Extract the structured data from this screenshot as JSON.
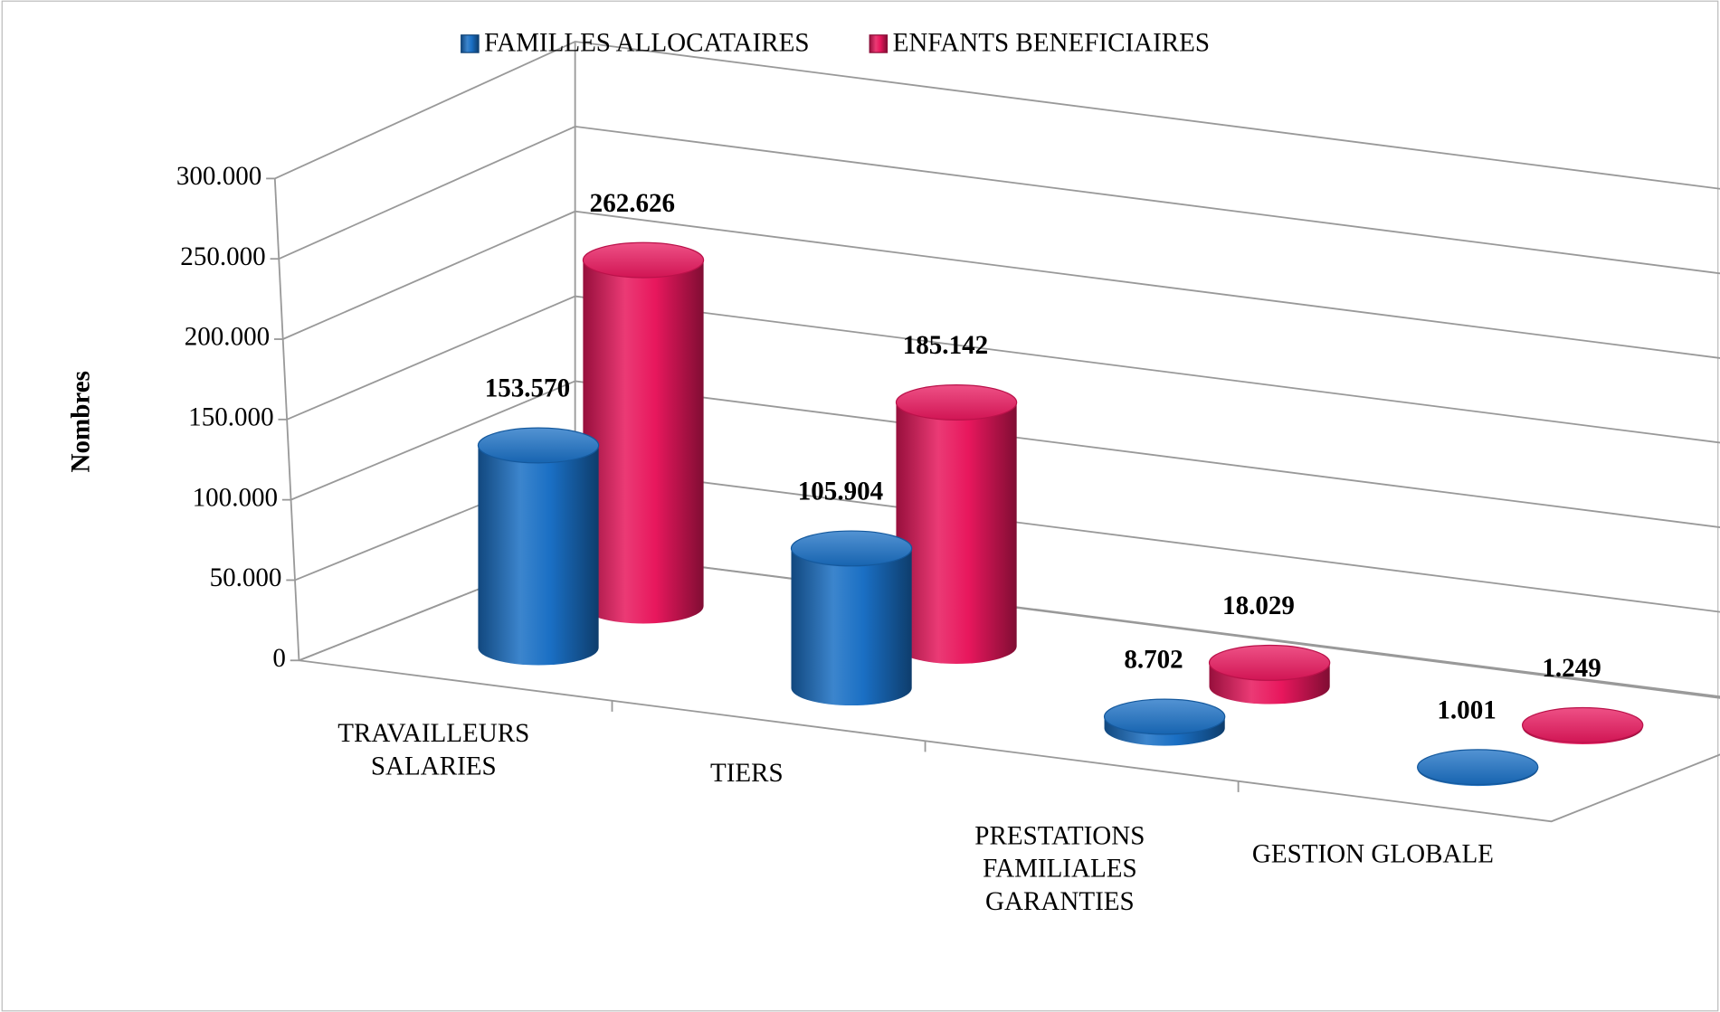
{
  "chart_data": {
    "type": "bar3d",
    "y_label": "Nombres",
    "categories": [
      "TRAVAILLEURS\nSALARIES",
      "TIERS",
      "PRESTATIONS\nFAMILIALES\nGARANTIES",
      "GESTION GLOBALE"
    ],
    "series": [
      {
        "name": "FAMILLES ALLOCATAIRES",
        "color": "#1a6fc4",
        "values": [
          153570,
          105904,
          8702,
          1001
        ],
        "value_labels": [
          "153.570",
          "105.904",
          "8.702",
          "1.001"
        ]
      },
      {
        "name": "ENFANTS BENEFICIAIRES",
        "color": "#e8175d",
        "values": [
          262626,
          185142,
          18029,
          1249
        ],
        "value_labels": [
          "262.626",
          "185.142",
          "18.029",
          "1.249"
        ]
      }
    ],
    "ylim": [
      0,
      300000
    ],
    "yticks": [
      0,
      {
        "value": 50000,
        "label": "50.000"
      },
      {
        "value": 100000,
        "label": "100.000"
      },
      {
        "value": 150000,
        "label": "150.000"
      },
      {
        "value": 200000,
        "label": "200.000"
      },
      {
        "value": 250000,
        "label": "250.000"
      },
      {
        "value": 300000,
        "label": "300.000"
      }
    ],
    "grid": true,
    "legend": "top"
  }
}
